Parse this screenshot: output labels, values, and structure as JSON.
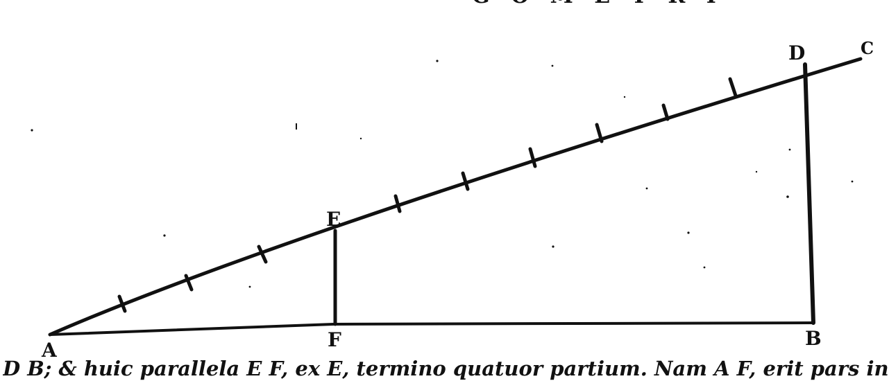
{
  "header": {
    "text": "G O M E T R I"
  },
  "points": {
    "A": "A",
    "B": "B",
    "C": "C",
    "D": "D",
    "E": "E",
    "F": "F"
  },
  "caption": {
    "text": "D B; & huic parallela E F, ex E, termino quatuor partium. Nam A F, erit pars in"
  },
  "colors": {
    "ink": "#111111",
    "paper": "#ffffff"
  }
}
